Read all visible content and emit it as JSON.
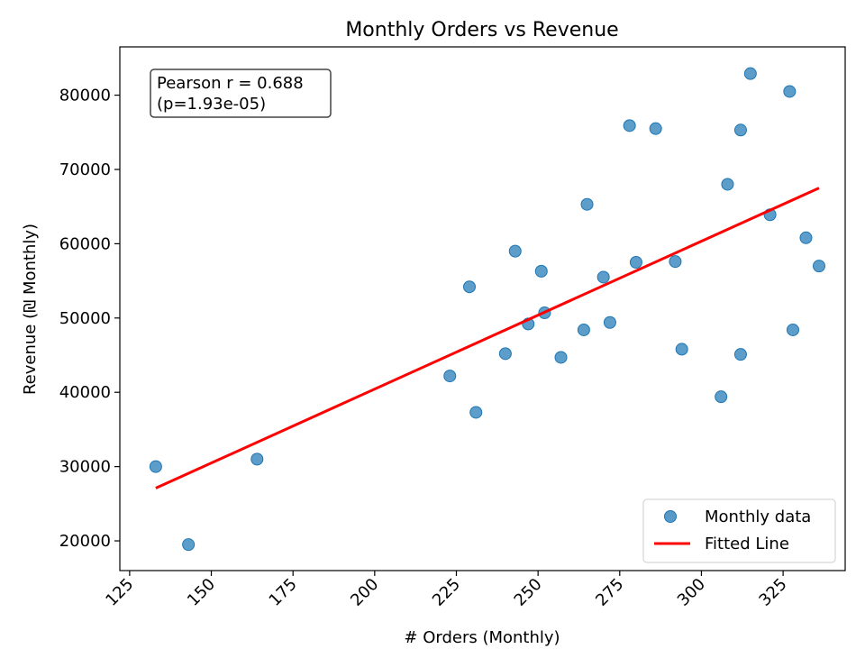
{
  "chart_data": {
    "type": "scatter",
    "title": "Monthly Orders vs Revenue",
    "xlabel": "# Orders (Monthly)",
    "ylabel": "Revenue (₪ Monthly)",
    "xlim": [
      122,
      344
    ],
    "ylim": [
      16000,
      86500
    ],
    "xticks": [
      125,
      150,
      175,
      200,
      225,
      250,
      275,
      300,
      325
    ],
    "yticks": [
      20000,
      30000,
      40000,
      50000,
      60000,
      70000,
      80000
    ],
    "grid": false,
    "legend_position": "lower-right",
    "annotation": {
      "line1": "Pearson r = 0.688",
      "line2": "(p=1.93e-05)"
    },
    "series": [
      {
        "name": "Monthly data",
        "kind": "scatter",
        "color": "#1f77b4",
        "points": [
          [
            133,
            30000
          ],
          [
            143,
            19500
          ],
          [
            164,
            31000
          ],
          [
            223,
            42200
          ],
          [
            229,
            54200
          ],
          [
            231,
            37300
          ],
          [
            240,
            45200
          ],
          [
            243,
            59000
          ],
          [
            247,
            49200
          ],
          [
            251,
            56300
          ],
          [
            252,
            50700
          ],
          [
            257,
            44700
          ],
          [
            264,
            48400
          ],
          [
            265,
            65300
          ],
          [
            270,
            55500
          ],
          [
            272,
            49400
          ],
          [
            278,
            75900
          ],
          [
            280,
            57500
          ],
          [
            286,
            75500
          ],
          [
            292,
            57600
          ],
          [
            294,
            45800
          ],
          [
            306,
            39400
          ],
          [
            308,
            68000
          ],
          [
            312,
            75300
          ],
          [
            312,
            45100
          ],
          [
            315,
            82900
          ],
          [
            321,
            63900
          ],
          [
            327,
            80500
          ],
          [
            328,
            48400
          ],
          [
            332,
            60800
          ],
          [
            336,
            57000
          ]
        ]
      },
      {
        "name": "Fitted Line",
        "kind": "line",
        "color": "#ff0000",
        "points": [
          [
            133,
            27100
          ],
          [
            336,
            67500
          ]
        ]
      }
    ]
  }
}
